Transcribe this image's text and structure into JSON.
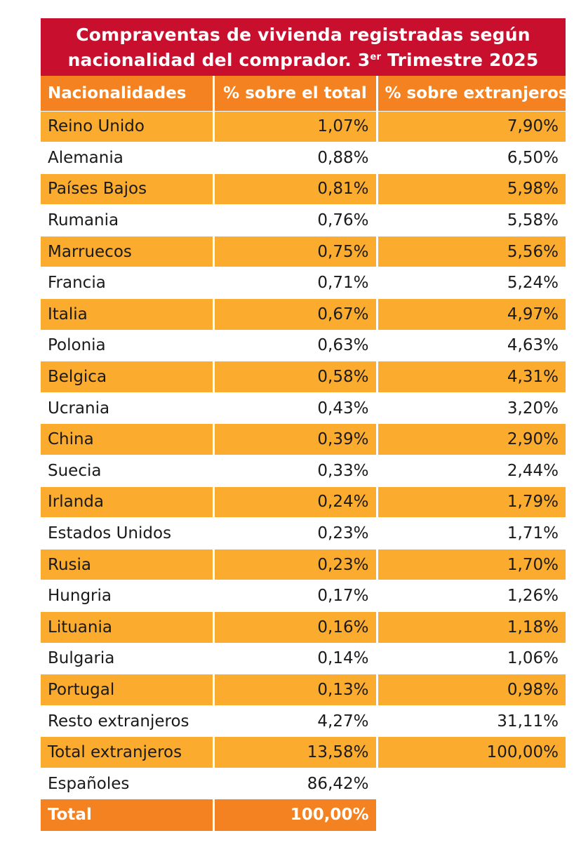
{
  "chart_data": {
    "type": "table",
    "title_main": "Compraventas de vivienda registradas según",
    "title_line2_prefix": "nacionalidad del comprador. 3",
    "title_sup": "er",
    "title_line2_suffix": " Trimestre 2025",
    "headers": [
      "Nacionalidades",
      "% sobre el total",
      "% sobre extranjeros"
    ],
    "rows": [
      [
        "Reino Unido",
        "1,07%",
        "7,90%"
      ],
      [
        "Alemania",
        "0,88%",
        "6,50%"
      ],
      [
        "Países Bajos",
        "0,81%",
        "5,98%"
      ],
      [
        "Rumania",
        "0,76%",
        "5,58%"
      ],
      [
        "Marruecos",
        "0,75%",
        "5,56%"
      ],
      [
        "Francia",
        "0,71%",
        "5,24%"
      ],
      [
        "Italia",
        "0,67%",
        "4,97%"
      ],
      [
        "Polonia",
        "0,63%",
        "4,63%"
      ],
      [
        "Belgica",
        "0,58%",
        "4,31%"
      ],
      [
        "Ucrania",
        "0,43%",
        "3,20%"
      ],
      [
        "China",
        "0,39%",
        "2,90%"
      ],
      [
        "Suecia",
        "0,33%",
        "2,44%"
      ],
      [
        "Irlanda",
        "0,24%",
        "1,79%"
      ],
      [
        "Estados Unidos",
        "0,23%",
        "1,71%"
      ],
      [
        "Rusia",
        "0,23%",
        "1,70%"
      ],
      [
        "Hungria",
        "0,17%",
        "1,26%"
      ],
      [
        "Lituania",
        "0,16%",
        "1,18%"
      ],
      [
        "Bulgaria",
        "0,14%",
        "1,06%"
      ],
      [
        "Portugal",
        "0,13%",
        "0,98%"
      ],
      [
        "Resto extranjeros",
        "4,27%",
        "31,11%"
      ],
      [
        "Total extranjeros",
        "13,58%",
        "100,00%"
      ],
      [
        "Españoles",
        "86,42%",
        ""
      ]
    ],
    "total_row": [
      "Total",
      "100,00%"
    ],
    "colors": {
      "title_bg": "#c8102e",
      "header_bg": "#f58220",
      "band_bg": "#fbab2e",
      "text": "#1a1a1a"
    }
  }
}
